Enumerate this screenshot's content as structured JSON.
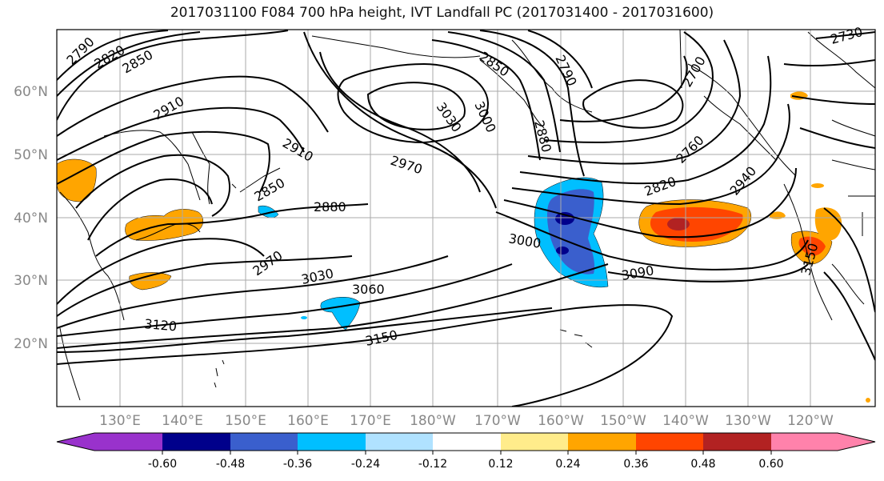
{
  "title": "2017031100 F084 700 hPa height, IVT Landfall PC (2017031400 - 2017031600)",
  "lat_labels": [
    "60°N",
    "50°N",
    "40°N",
    "30°N",
    "20°N"
  ],
  "lon_labels": [
    "130°E",
    "140°E",
    "150°E",
    "160°E",
    "170°E",
    "180°W",
    "170°W",
    "160°W",
    "150°W",
    "140°W",
    "130°W",
    "120°W"
  ],
  "contour_labels": [
    "2790",
    "2820",
    "2850",
    "2910",
    "2910",
    "2850",
    "2880",
    "2970",
    "3030",
    "3060",
    "3120",
    "3150",
    "2970",
    "3030",
    "3000",
    "2850",
    "2790",
    "2880",
    "3000",
    "3090",
    "2700",
    "2760",
    "2820",
    "2940",
    "3150",
    "2730"
  ],
  "colorbar": {
    "ticks": [
      "-0.60",
      "-0.48",
      "-0.36",
      "-0.24",
      "-0.12",
      "0.12",
      "0.24",
      "0.36",
      "0.48",
      "0.60"
    ],
    "colors": [
      "#9932CC",
      "#00008B",
      "#3A5FCD",
      "#00BFFF",
      "#B0E2FF",
      "#FFFFFF",
      "#FFEC8B",
      "#FFA500",
      "#FF4500",
      "#B22222",
      "#FF82AB"
    ]
  }
}
